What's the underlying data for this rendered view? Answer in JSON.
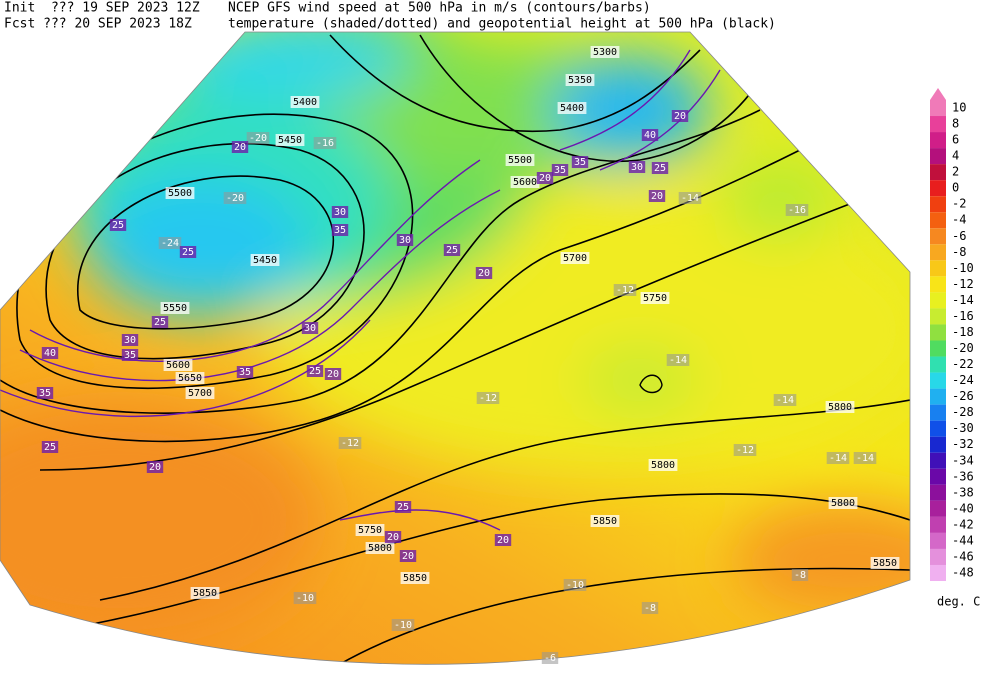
{
  "header": {
    "init": "Init  ??? 19 SEP 2023 12Z",
    "fcst": "Fcst ??? 20 SEP 2023 18Z",
    "line1": "NCEP GFS wind speed at 500 hPa in m/s (contours/barbs)",
    "line2": "temperature (shaded/dotted) and geopotential height at 500 hPa (black)"
  },
  "colorbar": {
    "levels": [
      10,
      8,
      6,
      4,
      2,
      0,
      -2,
      -4,
      -6,
      -8,
      -10,
      -12,
      -14,
      -16,
      -18,
      -20,
      -22,
      -24,
      -26,
      -28,
      -30,
      -32,
      -34,
      -36,
      -38,
      -40,
      -42,
      -44,
      -46,
      -48
    ],
    "colors": [
      "#f07ab8",
      "#e8409a",
      "#d01e88",
      "#b4107c",
      "#c0103c",
      "#e81e1e",
      "#f04010",
      "#f46010",
      "#f68820",
      "#f8a820",
      "#f8c818",
      "#f8e418",
      "#e8f020",
      "#c8ec30",
      "#90e040",
      "#50dc60",
      "#30e0b0",
      "#28d8e8",
      "#20b0f0",
      "#1880f0",
      "#1050e8",
      "#1828d0",
      "#4010b8",
      "#6a08a8",
      "#8c109c",
      "#a8209c",
      "#c040b0",
      "#d468c8",
      "#e490dc",
      "#f0b0f0"
    ],
    "unit": "deg. C"
  },
  "map": {
    "height_labels": [
      "5300",
      "5350",
      "5400",
      "5400",
      "5450",
      "5500",
      "5500",
      "5600",
      "5450",
      "5550",
      "5700",
      "5750",
      "5600",
      "5650",
      "5700",
      "5800",
      "5800",
      "5800",
      "5850",
      "5750",
      "5800",
      "5850",
      "5850",
      "5850"
    ],
    "temperature_labels": [
      "-20",
      "-16",
      "-20",
      "-24",
      "-12",
      "-16",
      "-14",
      "-14",
      "-14",
      "-12",
      "-12",
      "-12",
      "-10",
      "-10",
      "-8",
      "-6",
      "-14",
      "-14",
      "-10",
      "-8"
    ],
    "wind_labels": [
      "20",
      "25",
      "25",
      "25",
      "30",
      "35",
      "40",
      "35",
      "25",
      "20",
      "30",
      "35",
      "30",
      "25",
      "20",
      "30",
      "25",
      "20",
      "35",
      "20",
      "35",
      "30",
      "25",
      "20",
      "35",
      "40",
      "20",
      "25",
      "20",
      "20",
      "20"
    ]
  }
}
